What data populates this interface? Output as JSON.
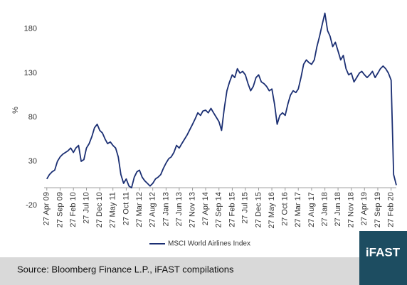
{
  "chart_data": {
    "type": "line",
    "y_label": "%",
    "x": [
      "2009-04-27",
      "2009-05-27",
      "2009-06-27",
      "2009-07-27",
      "2009-08-27",
      "2009-09-27",
      "2009-10-27",
      "2009-11-27",
      "2009-12-27",
      "2010-01-27",
      "2010-02-27",
      "2010-03-27",
      "2010-04-27",
      "2010-05-27",
      "2010-06-27",
      "2010-07-27",
      "2010-08-27",
      "2010-09-27",
      "2010-10-27",
      "2010-11-27",
      "2010-12-27",
      "2011-01-27",
      "2011-02-27",
      "2011-03-27",
      "2011-04-27",
      "2011-05-27",
      "2011-06-27",
      "2011-07-27",
      "2011-08-27",
      "2011-09-27",
      "2011-10-27",
      "2011-11-27",
      "2011-12-27",
      "2012-01-27",
      "2012-02-27",
      "2012-03-27",
      "2012-04-27",
      "2012-05-27",
      "2012-06-27",
      "2012-07-27",
      "2012-08-27",
      "2012-09-27",
      "2012-10-27",
      "2012-11-27",
      "2012-12-27",
      "2013-01-27",
      "2013-02-27",
      "2013-03-27",
      "2013-04-27",
      "2013-05-27",
      "2013-06-27",
      "2013-07-27",
      "2013-08-27",
      "2013-09-27",
      "2013-10-27",
      "2013-11-27",
      "2013-12-27",
      "2014-01-27",
      "2014-02-27",
      "2014-03-27",
      "2014-04-27",
      "2014-05-27",
      "2014-06-27",
      "2014-07-27",
      "2014-08-27",
      "2014-09-27",
      "2014-10-27",
      "2014-11-27",
      "2014-12-27",
      "2015-01-27",
      "2015-02-27",
      "2015-03-27",
      "2015-04-27",
      "2015-05-27",
      "2015-06-27",
      "2015-07-27",
      "2015-08-27",
      "2015-09-27",
      "2015-10-27",
      "2015-11-27",
      "2015-12-27",
      "2016-01-27",
      "2016-02-27",
      "2016-03-27",
      "2016-04-27",
      "2016-05-27",
      "2016-06-27",
      "2016-07-27",
      "2016-08-27",
      "2016-09-27",
      "2016-10-27",
      "2016-11-27",
      "2016-12-27",
      "2017-01-27",
      "2017-02-27",
      "2017-03-27",
      "2017-04-27",
      "2017-05-27",
      "2017-06-27",
      "2017-07-27",
      "2017-08-27",
      "2017-09-27",
      "2017-10-27",
      "2017-11-27",
      "2017-12-27",
      "2018-01-27",
      "2018-02-27",
      "2018-03-27",
      "2018-04-27",
      "2018-05-27",
      "2018-06-27",
      "2018-07-27",
      "2018-08-27",
      "2018-09-27",
      "2018-10-27",
      "2018-11-27",
      "2018-12-27",
      "2019-01-27",
      "2019-02-27",
      "2019-03-27",
      "2019-04-27",
      "2019-05-27",
      "2019-06-27",
      "2019-07-27",
      "2019-08-27",
      "2019-09-27",
      "2019-10-27",
      "2019-11-27",
      "2019-12-27",
      "2020-01-27",
      "2020-02-27",
      "2020-03-27",
      "2020-04-27"
    ],
    "series": [
      {
        "name": "MSCI World Airlines Index",
        "color": "#1b2f73",
        "values": [
          10,
          15,
          18,
          20,
          30,
          35,
          38,
          40,
          42,
          45,
          40,
          45,
          48,
          30,
          32,
          45,
          50,
          58,
          68,
          72,
          65,
          62,
          55,
          50,
          52,
          48,
          45,
          35,
          15,
          5,
          10,
          2,
          0,
          12,
          18,
          20,
          12,
          8,
          5,
          2,
          5,
          10,
          12,
          15,
          22,
          28,
          33,
          35,
          40,
          48,
          45,
          50,
          55,
          60,
          66,
          72,
          78,
          85,
          82,
          87,
          88,
          85,
          90,
          85,
          80,
          75,
          65,
          90,
          110,
          120,
          128,
          125,
          135,
          130,
          132,
          128,
          118,
          110,
          115,
          125,
          128,
          120,
          118,
          115,
          110,
          112,
          95,
          72,
          82,
          85,
          82,
          95,
          105,
          110,
          108,
          112,
          125,
          140,
          145,
          142,
          140,
          145,
          160,
          172,
          185,
          198,
          178,
          172,
          160,
          165,
          155,
          145,
          150,
          135,
          128,
          130,
          120,
          125,
          130,
          132,
          128,
          125,
          128,
          132,
          125,
          130,
          135,
          138,
          135,
          130,
          122,
          15,
          3
        ]
      }
    ],
    "xlim": [
      "2009-03-27",
      "2020-04-27"
    ],
    "xticks": [
      {
        "value": "2009-04-27",
        "label": "27 Apr 09"
      },
      {
        "value": "2009-09-27",
        "label": "27 Sep 09"
      },
      {
        "value": "2010-02-27",
        "label": "27 Feb 10"
      },
      {
        "value": "2010-07-27",
        "label": "27 Jul 10"
      },
      {
        "value": "2010-12-27",
        "label": "27 Dec 10"
      },
      {
        "value": "2011-05-27",
        "label": "27 May 11"
      },
      {
        "value": "2011-10-27",
        "label": "27 Oct 11"
      },
      {
        "value": "2012-03-27",
        "label": "27 Mar 12"
      },
      {
        "value": "2012-08-27",
        "label": "27 Aug 12"
      },
      {
        "value": "2013-01-27",
        "label": "27 Jan 13"
      },
      {
        "value": "2013-06-27",
        "label": "27 Jun 13"
      },
      {
        "value": "2013-11-27",
        "label": "27 Nov 13"
      },
      {
        "value": "2014-04-27",
        "label": "27 Apr 14"
      },
      {
        "value": "2014-09-27",
        "label": "27 Sep 14"
      },
      {
        "value": "2015-02-27",
        "label": "27 Feb 15"
      },
      {
        "value": "2015-07-27",
        "label": "27 Jul 15"
      },
      {
        "value": "2015-12-27",
        "label": "27 Dec 15"
      },
      {
        "value": "2016-05-27",
        "label": "27 May 16"
      },
      {
        "value": "2016-10-27",
        "label": "27 Oct 16"
      },
      {
        "value": "2017-03-27",
        "label": "27 Mar 17"
      },
      {
        "value": "2017-08-27",
        "label": "27 Aug 17"
      },
      {
        "value": "2018-01-27",
        "label": "27 Jan 18"
      },
      {
        "value": "2018-06-27",
        "label": "27 Jun 18"
      },
      {
        "value": "2018-11-27",
        "label": "27 Nov 18"
      },
      {
        "value": "2019-04-27",
        "label": "27 Apr 19"
      },
      {
        "value": "2019-09-27",
        "label": "27 Sep 19"
      },
      {
        "value": "2020-02-27",
        "label": "27 Feb 20"
      }
    ],
    "ylim": [
      -20,
      200
    ],
    "yticks": [
      -20,
      30,
      80,
      130,
      180
    ],
    "grid": false,
    "source": "Source: Bloomberg Finance L.P., iFAST compilations",
    "logo": "iFAST"
  }
}
